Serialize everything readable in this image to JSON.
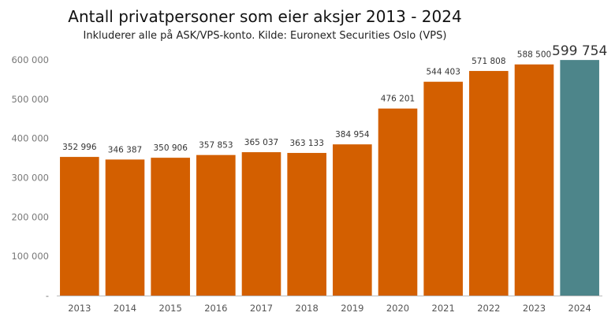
{
  "chart_data": {
    "type": "bar",
    "title": "Antall privatpersoner som eier aksjer 2013 - 2024",
    "subtitle": "Inkluderer alle på ASK/VPS-konto. Kilde: Euronext Securities Oslo (VPS)",
    "categories": [
      "2013",
      "2014",
      "2015",
      "2016",
      "2017",
      "2018",
      "2019",
      "2020",
      "2021",
      "2022",
      "2023",
      "2024"
    ],
    "values": [
      352996,
      346387,
      350906,
      357853,
      365037,
      363133,
      384954,
      476201,
      544403,
      571808,
      588500,
      599754
    ],
    "data_labels": [
      "352 996",
      "346 387",
      "350 906",
      "357 853",
      "365 037",
      "363 133",
      "384 954",
      "476 201",
      "544 403",
      "571 808",
      "588 500",
      "599 754"
    ],
    "ylim": [
      0,
      600000
    ],
    "y_ticks": [
      0,
      100000,
      200000,
      300000,
      400000,
      500000,
      600000
    ],
    "y_tick_labels": [
      "-",
      "100 000",
      "200 000",
      "300 000",
      "400 000",
      "500 000",
      "600 000"
    ],
    "xlabel": "",
    "ylabel": "",
    "grid": false,
    "legend": "none",
    "colors": {
      "bar": "#d35f00",
      "highlight_bar": "#4d858a",
      "axis": "#bbbbbb"
    },
    "highlight_index": 11
  }
}
